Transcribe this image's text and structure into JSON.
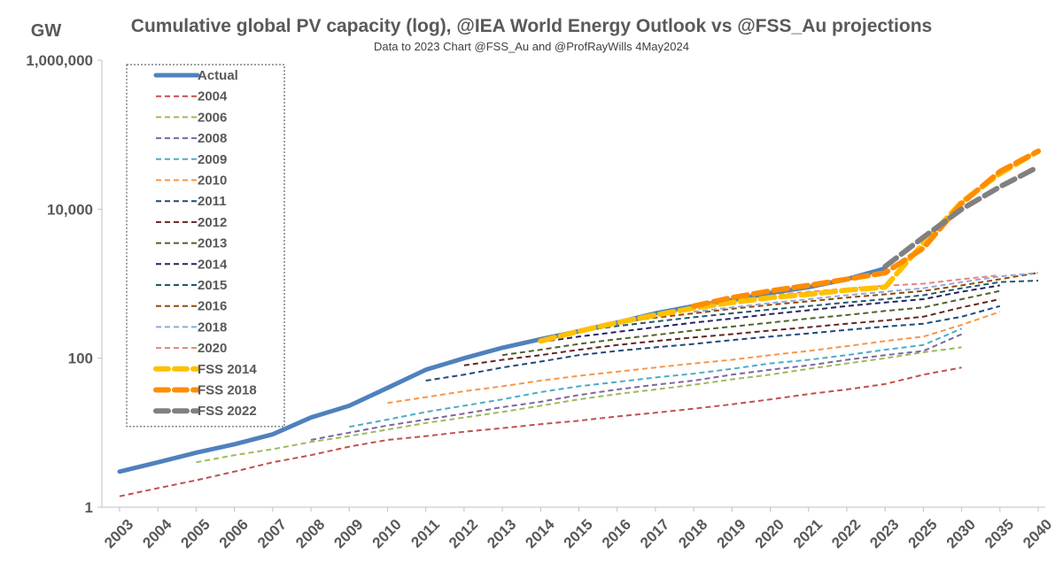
{
  "chart_data": {
    "type": "line",
    "title": "Cumulative global PV capacity (log), @IEA World Energy Outlook vs @FSS_Au projections",
    "subtitle": "Data to 2023 Chart @FSS_Au and @ProfRayWills 4May2024",
    "ylabel": "GW",
    "yscale": "log",
    "ylim": [
      1,
      1000000
    ],
    "yticks": [
      1,
      100,
      10000,
      1000000
    ],
    "ytick_labels": [
      "1",
      "100",
      "10,000",
      "1,000,000"
    ],
    "categories": [
      "2003",
      "2004",
      "2005",
      "2006",
      "2007",
      "2008",
      "2009",
      "2010",
      "2011",
      "2012",
      "2013",
      "2014",
      "2015",
      "2016",
      "2017",
      "2018",
      "2019",
      "2020",
      "2021",
      "2022",
      "2023",
      "2025",
      "2030",
      "2035",
      "2040"
    ],
    "legend_position": "top-left",
    "series": [
      {
        "name": "Actual",
        "color": "#4F81BD",
        "style": "solid",
        "width": 5,
        "values": [
          3,
          4,
          5.4,
          7,
          9.5,
          16,
          23,
          40,
          70,
          100,
          138,
          180,
          230,
          300,
          400,
          500,
          600,
          750,
          900,
          1150,
          1600,
          null,
          null,
          null,
          null
        ]
      },
      {
        "name": "2004",
        "color": "#C0504D",
        "style": "dash",
        "width": 2,
        "values": [
          1.4,
          1.8,
          2.3,
          3,
          4,
          5,
          6.5,
          8,
          9,
          10.3,
          11.5,
          13,
          14.5,
          16.5,
          18.5,
          21,
          24,
          28,
          33,
          38,
          45,
          60,
          75,
          null,
          null
        ]
      },
      {
        "name": "2006",
        "color": "#9BBB59",
        "style": "dash",
        "width": 2,
        "values": [
          null,
          null,
          4,
          5,
          6,
          7.5,
          9,
          11,
          13.5,
          16,
          19,
          23,
          28,
          33,
          38,
          44,
          52,
          60,
          72,
          85,
          100,
          120,
          140,
          null,
          null
        ]
      },
      {
        "name": "2008",
        "color": "#8064A2",
        "style": "dash",
        "width": 2,
        "values": [
          null,
          null,
          null,
          null,
          null,
          8,
          10,
          12.5,
          15,
          18,
          22,
          26,
          32,
          38,
          44,
          50,
          60,
          70,
          80,
          95,
          110,
          125,
          210,
          null,
          null
        ]
      },
      {
        "name": "2009",
        "color": "#4BACC6",
        "style": "dash",
        "width": 2,
        "values": [
          null,
          null,
          null,
          null,
          null,
          null,
          12,
          15,
          19,
          23,
          28,
          35,
          42,
          48,
          55,
          62,
          72,
          85,
          95,
          110,
          130,
          150,
          250,
          null,
          null
        ]
      },
      {
        "name": "2010",
        "color": "#F79646",
        "style": "dash",
        "width": 2,
        "values": [
          null,
          null,
          null,
          null,
          null,
          null,
          null,
          25,
          30,
          36,
          42,
          50,
          58,
          66,
          75,
          85,
          95,
          110,
          125,
          145,
          170,
          195,
          280,
          420,
          null
        ]
      },
      {
        "name": "2011",
        "color": "#1F497D",
        "style": "dash",
        "width": 2,
        "values": [
          null,
          null,
          null,
          null,
          null,
          null,
          null,
          null,
          50,
          60,
          75,
          90,
          110,
          125,
          140,
          155,
          175,
          195,
          215,
          240,
          265,
          290,
          360,
          500,
          null
        ]
      },
      {
        "name": "2012",
        "color": "#632523",
        "style": "dash",
        "width": 2,
        "values": [
          null,
          null,
          null,
          null,
          null,
          null,
          null,
          null,
          null,
          80,
          95,
          110,
          130,
          150,
          170,
          190,
          210,
          235,
          260,
          290,
          320,
          360,
          480,
          620,
          null
        ]
      },
      {
        "name": "2013",
        "color": "#4F6228",
        "style": "dash",
        "width": 2,
        "values": [
          null,
          null,
          null,
          null,
          null,
          null,
          null,
          null,
          null,
          null,
          110,
          130,
          155,
          180,
          205,
          235,
          265,
          300,
          340,
          380,
          430,
          480,
          620,
          800,
          null
        ]
      },
      {
        "name": "2014",
        "color": "#262262",
        "style": "dash",
        "width": 2,
        "values": [
          null,
          null,
          null,
          null,
          null,
          null,
          null,
          null,
          null,
          null,
          null,
          165,
          195,
          225,
          260,
          300,
          340,
          390,
          440,
          500,
          560,
          620,
          780,
          950,
          null
        ]
      },
      {
        "name": "2015",
        "color": "#215967",
        "style": "dash",
        "width": 2,
        "values": [
          null,
          null,
          null,
          null,
          null,
          null,
          null,
          null,
          null,
          null,
          null,
          null,
          230,
          270,
          310,
          355,
          400,
          450,
          500,
          560,
          620,
          700,
          870,
          1050,
          1100
        ]
      },
      {
        "name": "2016",
        "color": "#974806",
        "style": "dash",
        "width": 2,
        "values": [
          null,
          null,
          null,
          null,
          null,
          null,
          null,
          null,
          null,
          null,
          null,
          null,
          null,
          300,
          350,
          400,
          460,
          520,
          580,
          650,
          720,
          800,
          950,
          1150,
          1400
        ]
      },
      {
        "name": "2018",
        "color": "#8EA9DB",
        "style": "dash",
        "width": 2,
        "values": [
          null,
          null,
          null,
          null,
          null,
          null,
          null,
          null,
          null,
          null,
          null,
          null,
          null,
          null,
          null,
          420,
          480,
          550,
          620,
          700,
          780,
          870,
          1050,
          1250,
          1400
        ]
      },
      {
        "name": "2020",
        "color": "#E6857A",
        "style": "dash",
        "width": 2,
        "values": [
          null,
          null,
          null,
          null,
          null,
          null,
          null,
          null,
          null,
          null,
          null,
          null,
          null,
          null,
          null,
          null,
          null,
          700,
          780,
          860,
          940,
          1000,
          1150,
          1300,
          null
        ]
      },
      {
        "name": "FSS 2014",
        "color": "#FFC000",
        "style": "dash",
        "width": 6,
        "values": [
          null,
          null,
          null,
          null,
          null,
          null,
          null,
          null,
          null,
          null,
          null,
          170,
          230,
          300,
          380,
          470,
          560,
          650,
          720,
          820,
          900,
          3500,
          12500,
          30000,
          60000
        ]
      },
      {
        "name": "FSS 2018",
        "color": "#FF8C00",
        "style": "dash",
        "width": 6,
        "values": [
          null,
          null,
          null,
          null,
          null,
          null,
          null,
          null,
          null,
          null,
          null,
          null,
          null,
          null,
          null,
          500,
          650,
          800,
          950,
          1150,
          1400,
          3000,
          12000,
          32000,
          60000
        ]
      },
      {
        "name": "FSS 2022",
        "color": "#808080",
        "style": "dash",
        "width": 6,
        "values": [
          null,
          null,
          null,
          null,
          null,
          null,
          null,
          null,
          null,
          null,
          null,
          null,
          null,
          null,
          null,
          null,
          null,
          null,
          null,
          null,
          1700,
          4200,
          10000,
          20000,
          37000
        ]
      }
    ]
  }
}
